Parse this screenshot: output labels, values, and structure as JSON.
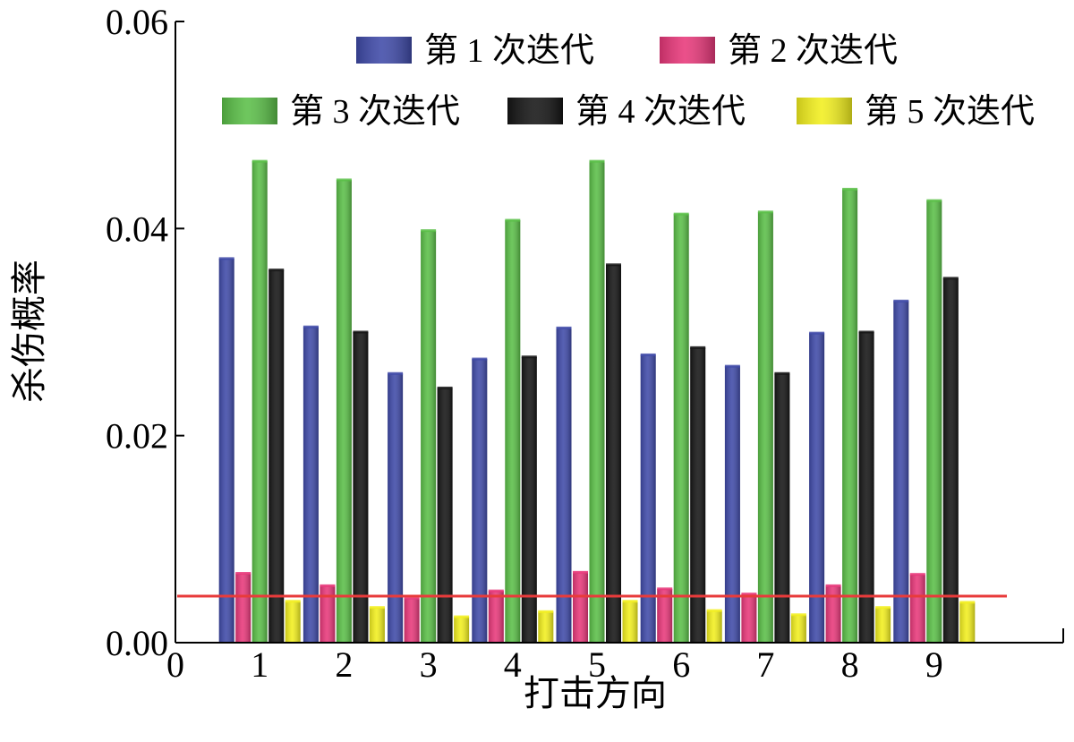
{
  "chart_data": {
    "type": "bar",
    "xlabel": "打击方向",
    "ylabel": "杀伤概率",
    "categories": [
      "1",
      "2",
      "3",
      "4",
      "5",
      "6",
      "7",
      "8",
      "9"
    ],
    "x_ticks": [
      "0",
      "1",
      "2",
      "3",
      "4",
      "5",
      "6",
      "7",
      "8",
      "9"
    ],
    "ylim": [
      0,
      0.06
    ],
    "y_ticks": [
      "0.00",
      "0.02",
      "0.04",
      "0.06"
    ],
    "legend_position": "top",
    "series": [
      {
        "name": "第 1 次迭代",
        "color": "#3f4aa8",
        "values": [
          0.0371,
          0.0305,
          0.026,
          0.0274,
          0.0304,
          0.0278,
          0.0267,
          0.0299,
          0.033
        ]
      },
      {
        "name": "第 2 次迭代",
        "color": "#e8387a",
        "values": [
          0.0067,
          0.0055,
          0.0043,
          0.005,
          0.0068,
          0.0052,
          0.0047,
          0.0055,
          0.0066
        ]
      },
      {
        "name": "第 3 次迭代",
        "color": "#5bbf48",
        "values": [
          0.0465,
          0.0447,
          0.0398,
          0.0408,
          0.0465,
          0.0414,
          0.0416,
          0.0438,
          0.0427
        ]
      },
      {
        "name": "第 4 次迭代",
        "color": "#151515",
        "values": [
          0.036,
          0.03,
          0.0246,
          0.0276,
          0.0365,
          0.0285,
          0.026,
          0.03,
          0.0352
        ]
      },
      {
        "name": "第 5 次迭代",
        "color": "#f2ef1e",
        "values": [
          0.004,
          0.0034,
          0.0025,
          0.003,
          0.004,
          0.0031,
          0.0027,
          0.0034,
          0.0039
        ]
      }
    ],
    "reference_line": {
      "value": 0.0045,
      "color": "#e83b3b"
    }
  }
}
